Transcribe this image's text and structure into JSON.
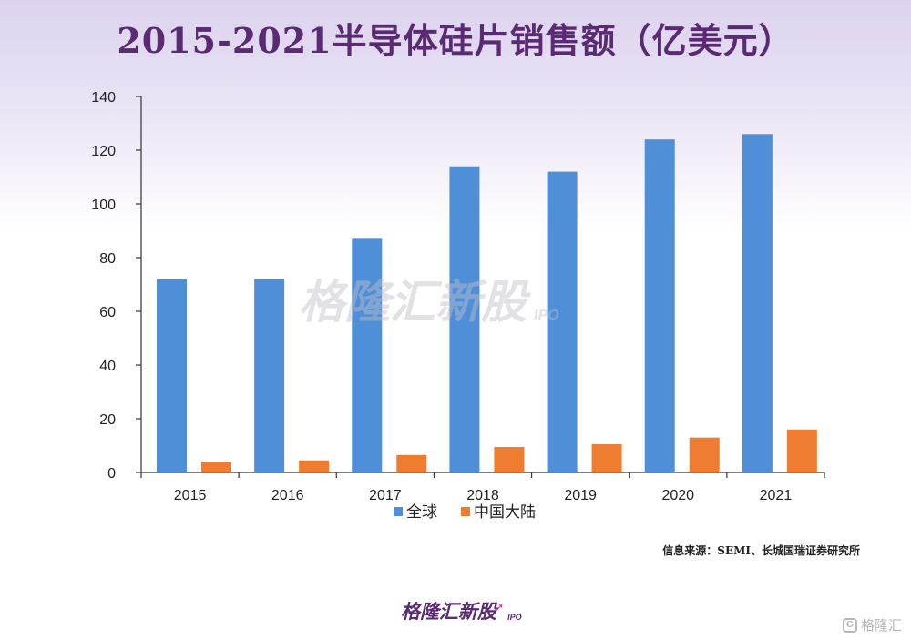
{
  "title": "2015-2021半导体硅片销售额（亿美元）",
  "source_note": "信息来源：SEMI、长城国瑞证券研究所",
  "brand": {
    "name": "格隆汇新股",
    "sub": "IPO"
  },
  "watermark": {
    "name": "格隆汇新股",
    "sub": "IPO"
  },
  "corner_logo": {
    "icon": "brand-g-icon",
    "text": "格隆汇"
  },
  "colors": {
    "title": "#5a2a73",
    "global": "#4f8fd8",
    "china": "#ee7d31"
  },
  "chart_data": {
    "type": "bar",
    "categories": [
      "2015",
      "2016",
      "2017",
      "2018",
      "2019",
      "2020",
      "2021"
    ],
    "series": [
      {
        "name": "全球",
        "values": [
          72,
          72,
          87,
          114,
          112,
          124,
          126
        ]
      },
      {
        "name": "中国大陆",
        "values": [
          4,
          4.5,
          6.5,
          9.5,
          10.5,
          13,
          16
        ]
      }
    ],
    "ylim": [
      0,
      140
    ],
    "yticks": [
      0,
      20,
      40,
      60,
      80,
      100,
      120,
      140
    ],
    "xlabel": "",
    "ylabel": "",
    "legend_position": "bottom",
    "grid": false
  }
}
